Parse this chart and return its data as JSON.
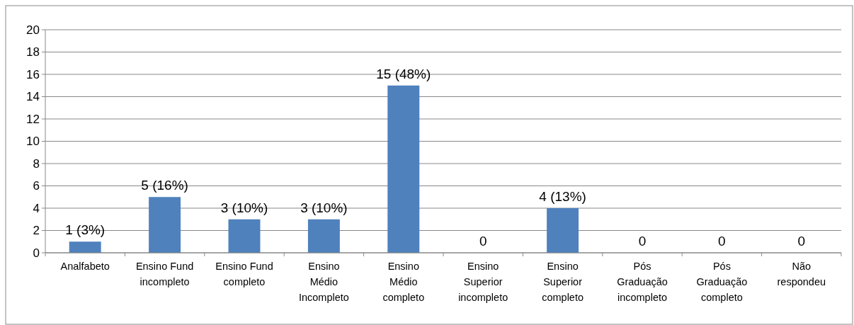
{
  "chart_data": {
    "type": "bar",
    "categories": [
      "Analfabeto",
      "Ensino Fund\nincompleto",
      "Ensino Fund\ncompleto",
      "Ensino\nMédio\nIncompleto",
      "Ensino\nMédio\ncompleto",
      "Ensino\nSuperior\nincompleto",
      "Ensino\nSuperior\ncompleto",
      "Pós\nGraduação\nincompleto",
      "Pós\nGraduação\ncompleto",
      "Não\nrespondeu"
    ],
    "values": [
      1,
      5,
      3,
      3,
      15,
      0,
      4,
      0,
      0,
      0
    ],
    "value_labels": [
      "1 (3%)",
      "5 (16%)",
      "3 (10%)",
      "3 (10%)",
      "15 (48%)",
      "0",
      "4 (13%)",
      "0",
      "0",
      "0"
    ],
    "color": "#4f81bd",
    "ylim": [
      0,
      20
    ],
    "yticks": [
      0,
      2,
      4,
      6,
      8,
      10,
      12,
      14,
      16,
      18,
      20
    ],
    "grid": "y"
  }
}
